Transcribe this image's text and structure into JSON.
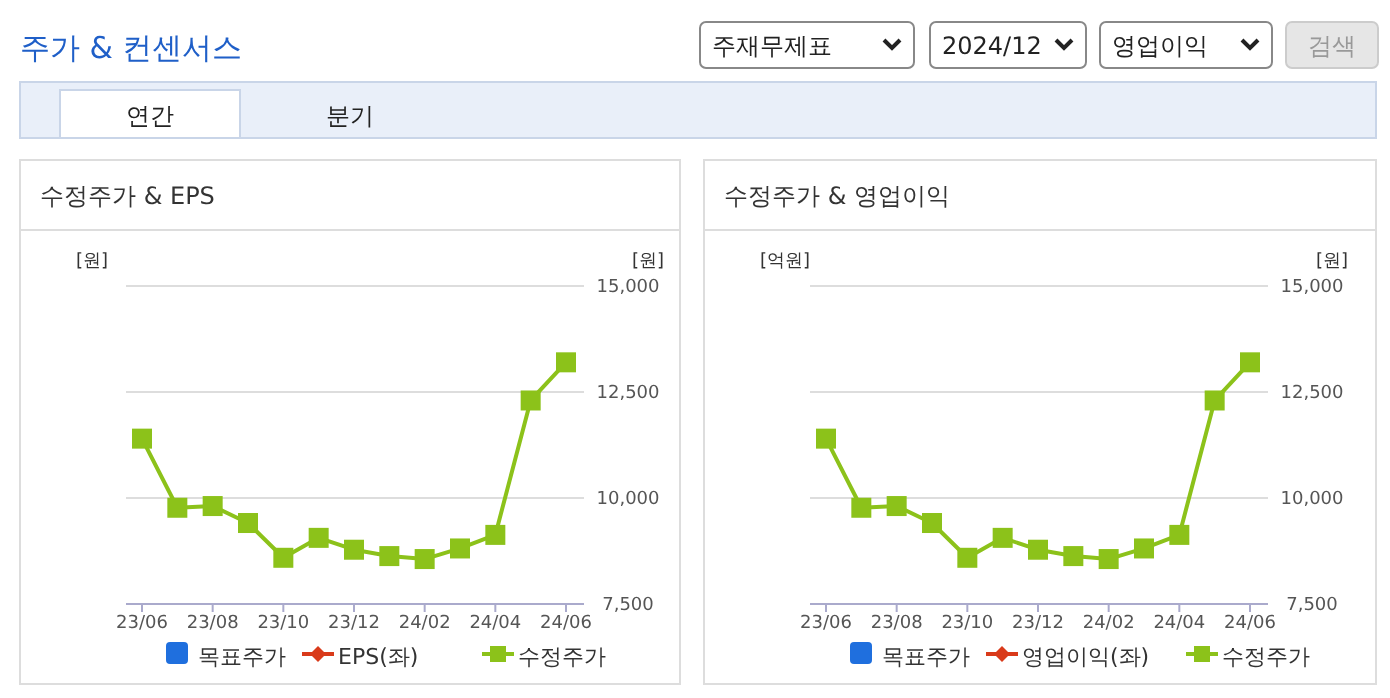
{
  "chart_data": [
    {
      "type": "other",
      "title": "주가 & 컨센서스",
      "annotations": [
        "주재무제표",
        "2024/12",
        "영업이익",
        "검색",
        "연간",
        "분기"
      ]
    },
    {
      "type": "line",
      "title": "수정주가 & EPS",
      "ylabel": "[원]",
      "y2label": "[원]",
      "categories": [
        "23/06",
        null,
        "23/08",
        null,
        "23/10",
        null,
        "23/12",
        null,
        "24/02",
        null,
        "24/04",
        null,
        "24/06"
      ],
      "series": [
        {
          "name": "목표주가",
          "type": "bar",
          "color": "#1f6fde",
          "values": [
            null,
            null,
            null,
            null,
            null,
            null,
            null,
            null,
            null,
            null,
            null,
            null,
            null
          ]
        },
        {
          "name": "EPS(좌)",
          "color": "#d93a1a",
          "marker": "diamond",
          "values": [
            null,
            null,
            null,
            null,
            null,
            null,
            null,
            null,
            null,
            null,
            null,
            null,
            null
          ]
        },
        {
          "name": "수정주가",
          "color": "#8cc21a",
          "marker": "square",
          "axis": "y2",
          "values": [
            11400,
            9770,
            9810,
            9410,
            8590,
            9060,
            8780,
            8630,
            8560,
            8810,
            9130,
            12300,
            13200
          ]
        }
      ],
      "y2lim": [
        7500,
        15000
      ],
      "y2ticks": [
        {
          "value": 7500,
          "label": "7,500"
        },
        {
          "value": 10000,
          "label": "10,000"
        },
        {
          "value": 12500,
          "label": "12,500"
        },
        {
          "value": 15000,
          "label": "15,000"
        }
      ],
      "grid": "y",
      "legend": "bottom"
    },
    {
      "type": "line",
      "title": "수정주가 & 영업이익",
      "ylabel": "[억원]",
      "y2label": "[원]",
      "categories": [
        "23/06",
        null,
        "23/08",
        null,
        "23/10",
        null,
        "23/12",
        null,
        "24/02",
        null,
        "24/04",
        null,
        "24/06"
      ],
      "series": [
        {
          "name": "목표주가",
          "type": "bar",
          "color": "#1f6fde",
          "values": [
            null,
            null,
            null,
            null,
            null,
            null,
            null,
            null,
            null,
            null,
            null,
            null,
            null
          ]
        },
        {
          "name": "영업이익(좌)",
          "color": "#d93a1a",
          "marker": "diamond",
          "values": [
            null,
            null,
            null,
            null,
            null,
            null,
            null,
            null,
            null,
            null,
            null,
            null,
            null
          ]
        },
        {
          "name": "수정주가",
          "color": "#8cc21a",
          "marker": "square",
          "axis": "y2",
          "values": [
            11400,
            9770,
            9810,
            9410,
            8590,
            9060,
            8780,
            8630,
            8560,
            8810,
            9130,
            12300,
            13200
          ]
        }
      ],
      "y2lim": [
        7500,
        15000
      ],
      "y2ticks": [
        {
          "value": 7500,
          "label": "7,500"
        },
        {
          "value": 10000,
          "label": "10,000"
        },
        {
          "value": 12500,
          "label": "12,500"
        },
        {
          "value": 15000,
          "label": "15,000"
        }
      ],
      "grid": "y",
      "legend": "bottom"
    }
  ]
}
